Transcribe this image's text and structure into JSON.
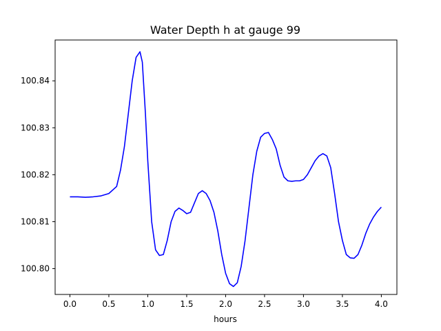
{
  "chart_data": {
    "type": "line",
    "title": "Water Depth h at gauge 99",
    "xlabel": "hours",
    "ylabel": "",
    "xlim": [
      -0.19,
      4.2
    ],
    "ylim": [
      100.7945,
      100.8487
    ],
    "grid": false,
    "x_ticks": [
      {
        "value": 0.0,
        "label": "0.0"
      },
      {
        "value": 0.5,
        "label": "0.5"
      },
      {
        "value": 1.0,
        "label": "1.0"
      },
      {
        "value": 1.5,
        "label": "1.5"
      },
      {
        "value": 2.0,
        "label": "2.0"
      },
      {
        "value": 2.5,
        "label": "2.5"
      },
      {
        "value": 3.0,
        "label": "3.0"
      },
      {
        "value": 3.5,
        "label": "3.5"
      },
      {
        "value": 4.0,
        "label": "4.0"
      }
    ],
    "y_ticks": [
      {
        "value": 100.8,
        "label": "100.80"
      },
      {
        "value": 100.81,
        "label": "100.81"
      },
      {
        "value": 100.82,
        "label": "100.82"
      },
      {
        "value": 100.83,
        "label": "100.83"
      },
      {
        "value": 100.84,
        "label": "100.84"
      }
    ],
    "series": [
      {
        "color": "#0000ff",
        "points": [
          [
            0.0,
            100.8153
          ],
          [
            0.1,
            100.8153
          ],
          [
            0.2,
            100.8152
          ],
          [
            0.3,
            100.8153
          ],
          [
            0.4,
            100.8155
          ],
          [
            0.5,
            100.816
          ],
          [
            0.6,
            100.8175
          ],
          [
            0.65,
            100.821
          ],
          [
            0.7,
            100.826
          ],
          [
            0.75,
            100.833
          ],
          [
            0.8,
            100.84
          ],
          [
            0.85,
            100.845
          ],
          [
            0.9,
            100.8462
          ],
          [
            0.93,
            100.844
          ],
          [
            0.97,
            100.833
          ],
          [
            1.0,
            100.823
          ],
          [
            1.05,
            100.81
          ],
          [
            1.1,
            100.804
          ],
          [
            1.15,
            100.8028
          ],
          [
            1.2,
            100.803
          ],
          [
            1.25,
            100.806
          ],
          [
            1.3,
            100.81
          ],
          [
            1.35,
            100.8122
          ],
          [
            1.4,
            100.8129
          ],
          [
            1.45,
            100.8124
          ],
          [
            1.5,
            100.8117
          ],
          [
            1.55,
            100.812
          ],
          [
            1.6,
            100.814
          ],
          [
            1.65,
            100.816
          ],
          [
            1.7,
            100.8166
          ],
          [
            1.75,
            100.816
          ],
          [
            1.8,
            100.8145
          ],
          [
            1.85,
            100.812
          ],
          [
            1.9,
            100.808
          ],
          [
            1.95,
            100.803
          ],
          [
            2.0,
            100.799
          ],
          [
            2.05,
            100.7968
          ],
          [
            2.1,
            100.7962
          ],
          [
            2.15,
            100.797
          ],
          [
            2.2,
            100.8005
          ],
          [
            2.25,
            100.806
          ],
          [
            2.3,
            100.813
          ],
          [
            2.35,
            100.82
          ],
          [
            2.4,
            100.825
          ],
          [
            2.45,
            100.828
          ],
          [
            2.5,
            100.8288
          ],
          [
            2.55,
            100.829
          ],
          [
            2.6,
            100.8275
          ],
          [
            2.65,
            100.8255
          ],
          [
            2.7,
            100.822
          ],
          [
            2.75,
            100.8195
          ],
          [
            2.8,
            100.8187
          ],
          [
            2.85,
            100.8186
          ],
          [
            2.9,
            100.8187
          ],
          [
            2.95,
            100.8187
          ],
          [
            3.0,
            100.819
          ],
          [
            3.05,
            100.82
          ],
          [
            3.1,
            100.8215
          ],
          [
            3.15,
            100.823
          ],
          [
            3.2,
            100.824
          ],
          [
            3.25,
            100.8245
          ],
          [
            3.3,
            100.824
          ],
          [
            3.35,
            100.8215
          ],
          [
            3.4,
            100.816
          ],
          [
            3.45,
            100.81
          ],
          [
            3.5,
            100.806
          ],
          [
            3.55,
            100.803
          ],
          [
            3.6,
            100.8023
          ],
          [
            3.65,
            100.8022
          ],
          [
            3.7,
            100.803
          ],
          [
            3.75,
            100.805
          ],
          [
            3.8,
            100.8075
          ],
          [
            3.85,
            100.8095
          ],
          [
            3.9,
            100.811
          ],
          [
            3.95,
            100.8122
          ],
          [
            4.0,
            100.8131
          ]
        ]
      }
    ]
  }
}
